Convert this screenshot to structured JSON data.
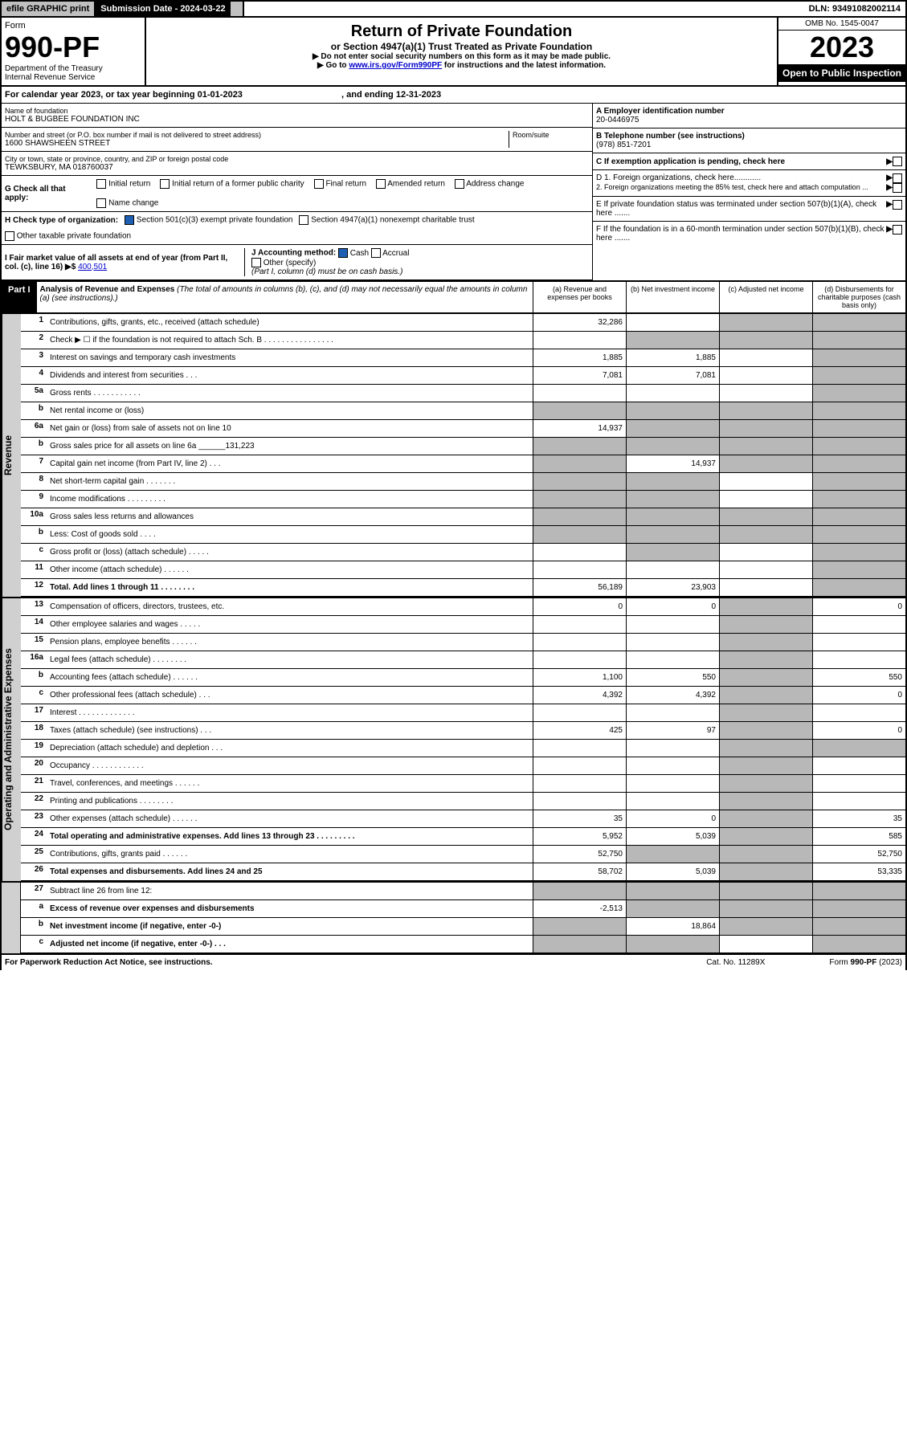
{
  "topBar": {
    "efile": "efile GRAPHIC print",
    "subDateLabel": "Submission Date - 2024-03-22",
    "dln": "DLN: 93491082002114"
  },
  "header": {
    "formWord": "Form",
    "formNo": "990-PF",
    "dept": "Department of the Treasury",
    "irs": "Internal Revenue Service",
    "title": "Return of Private Foundation",
    "subtitle": "or Section 4947(a)(1) Trust Treated as Private Foundation",
    "note1": "▶ Do not enter social security numbers on this form as it may be made public.",
    "note2a": "▶ Go to ",
    "note2link": "www.irs.gov/Form990PF",
    "note2b": " for instructions and the latest information.",
    "omb": "OMB No. 1545-0047",
    "year": "2023",
    "openPublic": "Open to Public Inspection"
  },
  "calYear": {
    "prefix": "For calendar year 2023, or tax year beginning ",
    "begin": "01-01-2023",
    "mid": " , and ending ",
    "end": "12-31-2023"
  },
  "info": {
    "nameLabel": "Name of foundation",
    "name": "HOLT & BUGBEE FOUNDATION INC",
    "addrLabel": "Number and street (or P.O. box number if mail is not delivered to street address)",
    "addr": "1600 SHAWSHEEN STREET",
    "roomLabel": "Room/suite",
    "cityLabel": "City or town, state or province, country, and ZIP or foreign postal code",
    "city": "TEWKSBURY, MA  018760037",
    "einLabel": "A Employer identification number",
    "ein": "20-0446975",
    "phoneLabel": "B Telephone number (see instructions)",
    "phone": "(978) 851-7201",
    "cLabel": "C If exemption application is pending, check here",
    "d1": "D 1. Foreign organizations, check here............",
    "d2": "2. Foreign organizations meeting the 85% test, check here and attach computation ...",
    "eLabel": "E If private foundation status was terminated under section 507(b)(1)(A), check here .......",
    "fLabel": "F If the foundation is in a 60-month termination under section 507(b)(1)(B), check here .......",
    "gLabel": "G Check all that apply:",
    "gOpts": [
      "Initial return",
      "Initial return of a former public charity",
      "Final return",
      "Amended return",
      "Address change",
      "Name change"
    ],
    "hLabel": "H Check type of organization:",
    "hOpts": [
      "Section 501(c)(3) exempt private foundation",
      "Section 4947(a)(1) nonexempt charitable trust",
      "Other taxable private foundation"
    ],
    "iLabel": "I Fair market value of all assets at end of year (from Part II, col. (c), line 16) ▶$",
    "iVal": "400,501",
    "jLabel": "J Accounting method:",
    "jOpts": [
      "Cash",
      "Accrual",
      "Other (specify)"
    ],
    "jNote": "(Part I, column (d) must be on cash basis.)"
  },
  "part1": {
    "label": "Part I",
    "title": "Analysis of Revenue and Expenses",
    "titleNote": " (The total of amounts in columns (b), (c), and (d) may not necessarily equal the amounts in column (a) (see instructions).)",
    "colA": "(a) Revenue and expenses per books",
    "colB": "(b) Net investment income",
    "colC": "(c) Adjusted net income",
    "colD": "(d) Disbursements for charitable purposes (cash basis only)"
  },
  "sideLabels": {
    "revenue": "Revenue",
    "expenses": "Operating and Administrative Expenses"
  },
  "rows": [
    {
      "n": "1",
      "d": "Contributions, gifts, grants, etc., received (attach schedule)",
      "a": "32,286",
      "b": "",
      "c": "s",
      "dv": "s"
    },
    {
      "n": "2",
      "d": "Check ▶ ☐ if the foundation is not required to attach Sch. B     .  .  .  .  .  .  .  .  .  .  .  .  .  .  .  .",
      "a": "",
      "b": "s",
      "c": "s",
      "dv": "s"
    },
    {
      "n": "3",
      "d": "Interest on savings and temporary cash investments",
      "a": "1,885",
      "b": "1,885",
      "c": "",
      "dv": "s"
    },
    {
      "n": "4",
      "d": "Dividends and interest from securities     .   .   .",
      "a": "7,081",
      "b": "7,081",
      "c": "",
      "dv": "s"
    },
    {
      "n": "5a",
      "d": "Gross rents     .   .   .   .   .   .   .   .   .   .   .",
      "a": "",
      "b": "",
      "c": "",
      "dv": "s"
    },
    {
      "n": "b",
      "d": "Net rental income or (loss)",
      "a": "s",
      "b": "s",
      "c": "s",
      "dv": "s"
    },
    {
      "n": "6a",
      "d": "Net gain or (loss) from sale of assets not on line 10",
      "a": "14,937",
      "b": "s",
      "c": "s",
      "dv": "s"
    },
    {
      "n": "b",
      "d": "Gross sales price for all assets on line 6a ______131,223",
      "a": "s",
      "b": "s",
      "c": "s",
      "dv": "s"
    },
    {
      "n": "7",
      "d": "Capital gain net income (from Part IV, line 2)   .   .   .",
      "a": "s",
      "b": "14,937",
      "c": "s",
      "dv": "s"
    },
    {
      "n": "8",
      "d": "Net short-term capital gain   .   .   .   .   .   .   .",
      "a": "s",
      "b": "s",
      "c": "",
      "dv": "s"
    },
    {
      "n": "9",
      "d": "Income modifications   .   .   .   .   .   .   .   .   .",
      "a": "s",
      "b": "s",
      "c": "",
      "dv": "s"
    },
    {
      "n": "10a",
      "d": "Gross sales less returns and allowances",
      "a": "s",
      "b": "s",
      "c": "s",
      "dv": "s"
    },
    {
      "n": "b",
      "d": "Less: Cost of goods sold    .   .   .   .",
      "a": "s",
      "b": "s",
      "c": "s",
      "dv": "s"
    },
    {
      "n": "c",
      "d": "Gross profit or (loss) (attach schedule)    .   .   .   .   .",
      "a": "",
      "b": "s",
      "c": "",
      "dv": "s"
    },
    {
      "n": "11",
      "d": "Other income (attach schedule)    .   .   .   .   .   .",
      "a": "",
      "b": "",
      "c": "",
      "dv": "s"
    },
    {
      "n": "12",
      "d": "Total. Add lines 1 through 11   .   .   .   .   .   .   .   .",
      "a": "56,189",
      "b": "23,903",
      "c": "",
      "dv": "s",
      "bold": true
    }
  ],
  "expRows": [
    {
      "n": "13",
      "d": "Compensation of officers, directors, trustees, etc.",
      "a": "0",
      "b": "0",
      "c": "s",
      "dv": "0"
    },
    {
      "n": "14",
      "d": "Other employee salaries and wages   .   .   .   .   .",
      "a": "",
      "b": "",
      "c": "s",
      "dv": ""
    },
    {
      "n": "15",
      "d": "Pension plans, employee benefits   .   .   .   .   .   .",
      "a": "",
      "b": "",
      "c": "s",
      "dv": ""
    },
    {
      "n": "16a",
      "d": "Legal fees (attach schedule)   .   .   .   .   .   .   .   .",
      "a": "",
      "b": "",
      "c": "s",
      "dv": ""
    },
    {
      "n": "b",
      "d": "Accounting fees (attach schedule)   .   .   .   .   .   .",
      "a": "1,100",
      "b": "550",
      "c": "s",
      "dv": "550"
    },
    {
      "n": "c",
      "d": "Other professional fees (attach schedule)    .   .   .",
      "a": "4,392",
      "b": "4,392",
      "c": "s",
      "dv": "0"
    },
    {
      "n": "17",
      "d": "Interest   .   .   .   .   .   .   .   .   .   .   .   .   .",
      "a": "",
      "b": "",
      "c": "s",
      "dv": ""
    },
    {
      "n": "18",
      "d": "Taxes (attach schedule) (see instructions)    .   .   .",
      "a": "425",
      "b": "97",
      "c": "s",
      "dv": "0"
    },
    {
      "n": "19",
      "d": "Depreciation (attach schedule) and depletion    .   .   .",
      "a": "",
      "b": "",
      "c": "s",
      "dv": "s"
    },
    {
      "n": "20",
      "d": "Occupancy   .   .   .   .   .   .   .   .   .   .   .   .",
      "a": "",
      "b": "",
      "c": "s",
      "dv": ""
    },
    {
      "n": "21",
      "d": "Travel, conferences, and meetings   .   .   .   .   .   .",
      "a": "",
      "b": "",
      "c": "s",
      "dv": ""
    },
    {
      "n": "22",
      "d": "Printing and publications   .   .   .   .   .   .   .   .",
      "a": "",
      "b": "",
      "c": "s",
      "dv": ""
    },
    {
      "n": "23",
      "d": "Other expenses (attach schedule)   .   .   .   .   .   .",
      "a": "35",
      "b": "0",
      "c": "s",
      "dv": "35"
    },
    {
      "n": "24",
      "d": "Total operating and administrative expenses. Add lines 13 through 23   .   .   .   .   .   .   .   .   .",
      "a": "5,952",
      "b": "5,039",
      "c": "s",
      "dv": "585",
      "bold": true
    },
    {
      "n": "25",
      "d": "Contributions, gifts, grants paid    .   .   .   .   .   .",
      "a": "52,750",
      "b": "s",
      "c": "s",
      "dv": "52,750"
    },
    {
      "n": "26",
      "d": "Total expenses and disbursements. Add lines 24 and 25",
      "a": "58,702",
      "b": "5,039",
      "c": "s",
      "dv": "53,335",
      "bold": true
    }
  ],
  "bottomRows": [
    {
      "n": "27",
      "d": "Subtract line 26 from line 12:",
      "a": "s",
      "b": "s",
      "c": "s",
      "dv": "s"
    },
    {
      "n": "a",
      "d": "Excess of revenue over expenses and disbursements",
      "a": "-2,513",
      "b": "s",
      "c": "s",
      "dv": "s",
      "bold": true
    },
    {
      "n": "b",
      "d": "Net investment income (if negative, enter -0-)",
      "a": "s",
      "b": "18,864",
      "c": "s",
      "dv": "s",
      "bold": true
    },
    {
      "n": "c",
      "d": "Adjusted net income (if negative, enter -0-)   .   .   .",
      "a": "s",
      "b": "s",
      "c": "",
      "dv": "s",
      "bold": true
    }
  ],
  "footer": {
    "left": "For Paperwork Reduction Act Notice, see instructions.",
    "mid": "Cat. No. 11289X",
    "right": "Form 990-PF (2023)"
  }
}
